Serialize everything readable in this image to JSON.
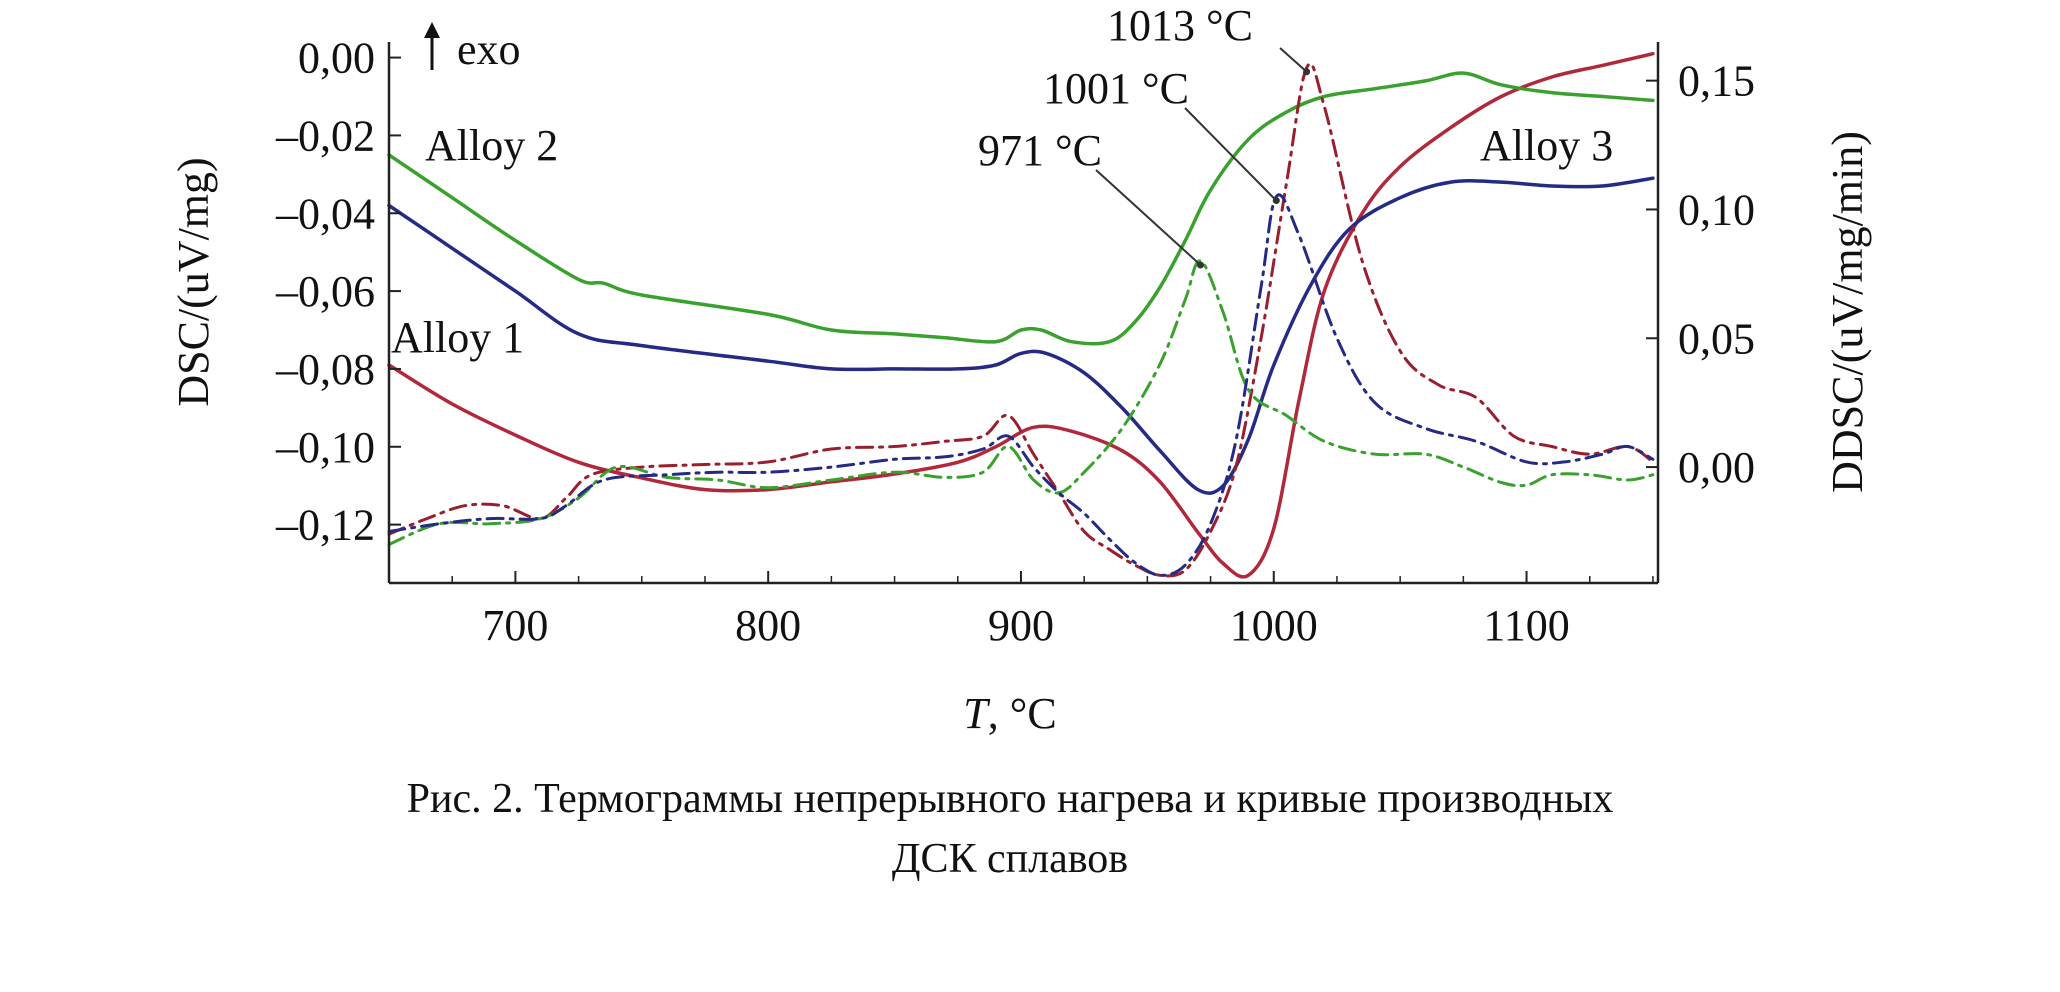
{
  "chart_data": {
    "type": "line",
    "xlabel_italic": "T",
    "xlabel_rest": ", °C",
    "ylabel_left": "DSC/(uV/mg)",
    "ylabel_right": "DDSC/(uV/mg/min)",
    "exo_label": "exo",
    "xlim": [
      650,
      1152
    ],
    "ylim_left": [
      -0.135,
      0.004
    ],
    "ylim_right": [
      -0.045,
      0.165
    ],
    "x_ticks": [
      700,
      800,
      900,
      1000,
      1100
    ],
    "x_tick_labels": [
      "700",
      "800",
      "900",
      "1000",
      "1100"
    ],
    "y_left_ticks": [
      0,
      -0.02,
      -0.04,
      -0.06,
      -0.08,
      -0.1,
      -0.12
    ],
    "y_left_tick_labels": [
      "0,00",
      "–0,02",
      "–0,04",
      "–0,06",
      "–0,08",
      "–0,10",
      "–0,12"
    ],
    "y_right_ticks": [
      0.15,
      0.1,
      0.05,
      0.0
    ],
    "y_right_tick_labels": [
      "0,15",
      "0,10",
      "0,05",
      "0,00"
    ],
    "series": [
      {
        "name": "Alloy 1",
        "kind": "DSC",
        "axis": "left",
        "color": "#b0283a",
        "x": [
          650,
          675,
          700,
          725,
          750,
          775,
          800,
          825,
          850,
          875,
          890,
          905,
          920,
          940,
          955,
          970,
          980,
          990,
          1000,
          1010,
          1020,
          1035,
          1050,
          1070,
          1090,
          1110,
          1130,
          1150
        ],
        "y": [
          -0.079,
          -0.089,
          -0.097,
          -0.104,
          -0.108,
          -0.111,
          -0.111,
          -0.109,
          -0.107,
          -0.104,
          -0.1,
          -0.095,
          -0.096,
          -0.101,
          -0.109,
          -0.122,
          -0.13,
          -0.133,
          -0.121,
          -0.088,
          -0.06,
          -0.04,
          -0.028,
          -0.018,
          -0.01,
          -0.005,
          -0.002,
          0.001
        ]
      },
      {
        "name": "Alloy 2",
        "kind": "DSC",
        "axis": "left",
        "color": "#3aa02e",
        "x": [
          650,
          675,
          700,
          725,
          735,
          750,
          800,
          825,
          850,
          870,
          890,
          900,
          908,
          920,
          935,
          945,
          955,
          965,
          975,
          990,
          1005,
          1020,
          1040,
          1060,
          1075,
          1090,
          1110,
          1130,
          1150
        ],
        "y": [
          -0.025,
          -0.036,
          -0.047,
          -0.057,
          -0.058,
          -0.061,
          -0.066,
          -0.07,
          -0.071,
          -0.072,
          -0.073,
          -0.07,
          -0.07,
          -0.073,
          -0.073,
          -0.068,
          -0.059,
          -0.047,
          -0.034,
          -0.021,
          -0.014,
          -0.01,
          -0.008,
          -0.006,
          -0.004,
          -0.007,
          -0.009,
          -0.01,
          -0.011
        ]
      },
      {
        "name": "Alloy 3",
        "kind": "DSC",
        "axis": "left",
        "color": "#252a84",
        "x": [
          650,
          675,
          700,
          725,
          750,
          800,
          825,
          850,
          875,
          890,
          900,
          910,
          925,
          940,
          955,
          970,
          980,
          990,
          1000,
          1015,
          1030,
          1050,
          1070,
          1090,
          1110,
          1130,
          1150
        ],
        "y": [
          -0.038,
          -0.049,
          -0.06,
          -0.071,
          -0.074,
          -0.078,
          -0.08,
          -0.08,
          -0.08,
          -0.079,
          -0.076,
          -0.076,
          -0.081,
          -0.09,
          -0.101,
          -0.111,
          -0.11,
          -0.098,
          -0.079,
          -0.058,
          -0.044,
          -0.036,
          -0.032,
          -0.032,
          -0.033,
          -0.033,
          -0.031
        ]
      },
      {
        "name": "Alloy 1",
        "kind": "DDSC",
        "axis": "right",
        "color": "#9a1f2e",
        "dash": "dashdot",
        "x": [
          650,
          665,
          680,
          695,
          710,
          720,
          730,
          750,
          775,
          800,
          825,
          850,
          870,
          885,
          895,
          905,
          915,
          925,
          935,
          945,
          955,
          965,
          975,
          985,
          995,
          1005,
          1013,
          1020,
          1035,
          1050,
          1065,
          1080,
          1095,
          1110,
          1125,
          1140,
          1150
        ],
        "y": [
          -0.026,
          -0.02,
          -0.015,
          -0.015,
          -0.02,
          -0.012,
          -0.003,
          0.0,
          0.001,
          0.002,
          0.007,
          0.008,
          0.01,
          0.012,
          0.02,
          0.005,
          -0.01,
          -0.025,
          -0.032,
          -0.038,
          -0.042,
          -0.04,
          -0.025,
          0.0,
          0.05,
          0.11,
          0.155,
          0.14,
          0.08,
          0.045,
          0.032,
          0.027,
          0.012,
          0.008,
          0.005,
          0.008,
          0.002
        ]
      },
      {
        "name": "Alloy 2",
        "kind": "DDSC",
        "axis": "right",
        "color": "#3aa02e",
        "dash": "dashdot",
        "x": [
          650,
          670,
          690,
          710,
          725,
          740,
          760,
          780,
          800,
          825,
          850,
          870,
          885,
          895,
          905,
          915,
          925,
          940,
          955,
          965,
          971,
          980,
          990,
          1005,
          1020,
          1040,
          1060,
          1075,
          1090,
          1100,
          1110,
          1125,
          1140,
          1150
        ],
        "y": [
          -0.03,
          -0.022,
          -0.022,
          -0.02,
          -0.012,
          0.0,
          -0.004,
          -0.005,
          -0.008,
          -0.005,
          -0.002,
          -0.004,
          -0.002,
          0.008,
          -0.005,
          -0.01,
          -0.002,
          0.015,
          0.04,
          0.065,
          0.08,
          0.06,
          0.03,
          0.02,
          0.01,
          0.005,
          0.005,
          0.0,
          -0.006,
          -0.007,
          -0.003,
          -0.003,
          -0.005,
          -0.003
        ]
      },
      {
        "name": "Alloy 3",
        "kind": "DDSC",
        "axis": "right",
        "color": "#252a84",
        "dash": "dashdot",
        "x": [
          650,
          670,
          690,
          710,
          720,
          735,
          760,
          780,
          800,
          825,
          850,
          870,
          885,
          895,
          905,
          915,
          925,
          935,
          945,
          955,
          965,
          975,
          985,
          995,
          1001,
          1010,
          1025,
          1040,
          1060,
          1080,
          1100,
          1115,
          1130,
          1140,
          1150
        ],
        "y": [
          -0.025,
          -0.022,
          -0.02,
          -0.02,
          -0.015,
          -0.005,
          -0.003,
          -0.002,
          -0.002,
          0.0,
          0.003,
          0.004,
          0.007,
          0.012,
          0.0,
          -0.01,
          -0.018,
          -0.028,
          -0.037,
          -0.042,
          -0.038,
          -0.022,
          0.01,
          0.07,
          0.105,
          0.09,
          0.05,
          0.025,
          0.015,
          0.01,
          0.002,
          0.002,
          0.005,
          0.008,
          0.003
        ]
      }
    ],
    "annotations": [
      {
        "text": "1013 °C",
        "x": 1013,
        "y": 0.155,
        "axis": "right"
      },
      {
        "text": "1001 °C",
        "x": 1001,
        "y": 0.105,
        "axis": "right"
      },
      {
        "text": "971 °C",
        "x": 971,
        "y": 0.08,
        "axis": "right"
      }
    ],
    "series_labels": [
      "Alloy 2",
      "Alloy 1",
      "Alloy 3"
    ]
  },
  "caption": {
    "line1": "Рис. 2. Термограммы непрерывного нагрева и кривые производных",
    "line2": "ДСК сплавов"
  }
}
